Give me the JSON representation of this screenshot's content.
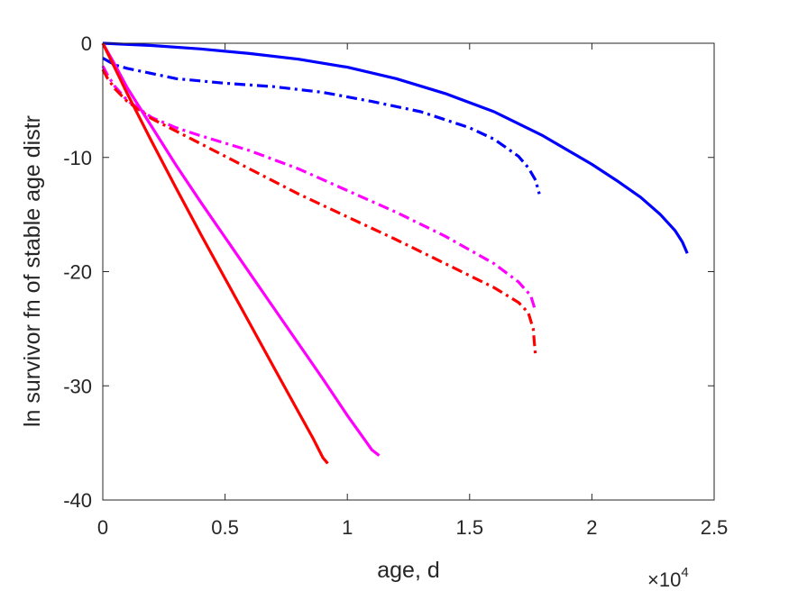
{
  "chart_data": {
    "type": "line",
    "xlabel": "age, d",
    "ylabel": "ln survivor fn of stable age distr",
    "xlim": [
      0,
      25000
    ],
    "ylim": [
      -40,
      0
    ],
    "x_ticks": [
      0,
      5000,
      10000,
      15000,
      20000,
      25000
    ],
    "x_tick_labels": [
      "0",
      "0.5",
      "1",
      "1.5",
      "2",
      "2.5"
    ],
    "x_exponent": {
      "base": "×10",
      "power": "4"
    },
    "y_ticks": [
      -40,
      -30,
      -20,
      -10,
      0
    ],
    "y_tick_labels": [
      "-40",
      "-30",
      "-20",
      "-10",
      "0"
    ],
    "grid": false,
    "box": true,
    "series": [
      {
        "color": "#0000ff",
        "style": "solid",
        "x": [
          0,
          2000,
          4000,
          6000,
          8000,
          10000,
          12000,
          14000,
          16000,
          18000,
          20000,
          21000,
          22000,
          22800,
          23400,
          23700,
          23900
        ],
        "y": [
          0,
          -0.2,
          -0.5,
          -0.9,
          -1.4,
          -2.1,
          -3.1,
          -4.4,
          -6.0,
          -8.1,
          -10.6,
          -12.0,
          -13.5,
          -15.0,
          -16.4,
          -17.4,
          -18.4
        ]
      },
      {
        "color": "#0000ff",
        "style": "dashdot",
        "x": [
          0,
          250,
          500,
          1000,
          3000,
          5000,
          7000,
          9000,
          11000,
          13000,
          15000,
          16000,
          17000,
          17400,
          17700,
          17850
        ],
        "y": [
          -1.3,
          -1.6,
          -1.9,
          -2.2,
          -3.1,
          -3.5,
          -3.8,
          -4.3,
          -5.1,
          -6.0,
          -7.4,
          -8.4,
          -9.9,
          -10.9,
          -12.0,
          -13.2
        ]
      },
      {
        "color": "#ff00ff",
        "style": "dashdot",
        "x": [
          0,
          200,
          500,
          1000,
          2000,
          3000,
          4000,
          6000,
          8000,
          10000,
          12000,
          14000,
          16000,
          17000,
          17500,
          17700
        ],
        "y": [
          -2.0,
          -2.8,
          -3.8,
          -5.0,
          -6.5,
          -7.4,
          -8.1,
          -9.4,
          -11.0,
          -12.9,
          -14.8,
          -16.9,
          -19.3,
          -20.9,
          -22.1,
          -23.5
        ]
      },
      {
        "color": "#ff0000",
        "style": "dashdot",
        "x": [
          0,
          200,
          500,
          1000,
          2000,
          3000,
          4000,
          6000,
          8000,
          10000,
          12000,
          14000,
          16000,
          17000,
          17400,
          17600,
          17700
        ],
        "y": [
          -2.3,
          -3.1,
          -4.0,
          -5.1,
          -6.6,
          -7.7,
          -8.8,
          -11.0,
          -13.2,
          -15.2,
          -17.2,
          -19.3,
          -21.4,
          -22.7,
          -23.6,
          -25.0,
          -27.5
        ]
      },
      {
        "color": "#ff00ff",
        "style": "solid",
        "x": [
          0,
          500,
          1000,
          2000,
          3000,
          4000,
          5000,
          6000,
          7000,
          8000,
          9000,
          10000,
          10500,
          11000,
          11300
        ],
        "y": [
          0,
          -1.9,
          -3.9,
          -7.3,
          -10.7,
          -13.9,
          -17.0,
          -20.1,
          -23.2,
          -26.3,
          -29.4,
          -32.6,
          -34.1,
          -35.6,
          -36.1
        ]
      },
      {
        "color": "#ff0000",
        "style": "solid",
        "x": [
          0,
          500,
          1000,
          2000,
          3000,
          4000,
          5000,
          6000,
          7000,
          8000,
          8600,
          9000,
          9200
        ],
        "y": [
          0,
          -2.2,
          -4.4,
          -8.6,
          -12.7,
          -16.7,
          -20.6,
          -24.5,
          -28.4,
          -32.3,
          -34.6,
          -36.3,
          -36.8
        ]
      }
    ]
  }
}
